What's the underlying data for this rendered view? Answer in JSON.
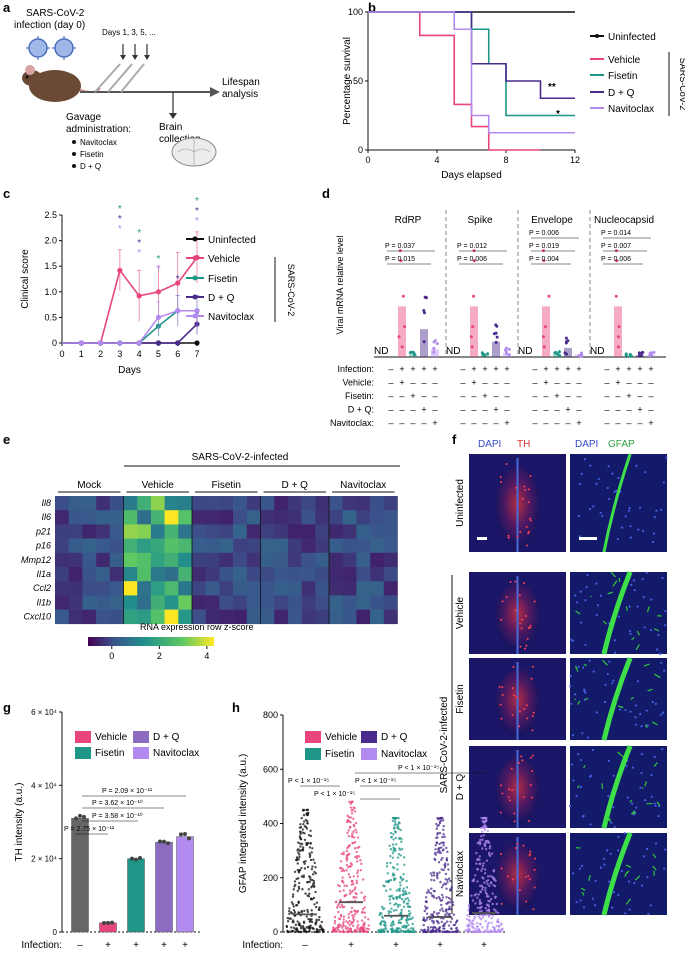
{
  "panels": {
    "a": {
      "label": "a",
      "infection_text": "SARS-CoV-2",
      "infection_day": "infection (day 0)",
      "days_text": "Days 1, 3, 5, ...",
      "lifespan1": "Lifespan",
      "lifespan2": "analysis",
      "gavage1": "Gavage",
      "gavage2": "administration:",
      "drugs": [
        "Navitoclax",
        "Fisetin",
        "D + Q"
      ],
      "brain1": "Brain",
      "brain2": "collection"
    },
    "b": {
      "label": "b"
    },
    "c": {
      "label": "c"
    },
    "d": {
      "label": "d"
    },
    "e": {
      "label": "e"
    },
    "f": {
      "label": "f"
    },
    "g": {
      "label": "g"
    },
    "h": {
      "label": "h"
    }
  },
  "colors": {
    "uninfected": "#111111",
    "vehicle": "#e8457c",
    "fisetin": "#1e9688",
    "dq": "#4a2a8c",
    "navitoclax": "#b38af0",
    "gray": "#666666"
  },
  "chart_data": [
    {
      "id": "b",
      "type": "line",
      "title": "",
      "xlabel": "Days elapsed",
      "ylabel": "Percentage survival",
      "xlim": [
        0,
        12
      ],
      "ylim": [
        0,
        100
      ],
      "xticks": [
        "0",
        "4",
        "8",
        "12"
      ],
      "yticks": [
        "0",
        "50",
        "100"
      ],
      "legend": [
        "Uninfected",
        "Vehicle",
        "Fisetin",
        "D + Q",
        "Navitoclax"
      ],
      "group_label": "SARS-CoV-2",
      "series": [
        {
          "name": "Uninfected",
          "steps": [
            [
              0,
              100
            ],
            [
              12,
              100
            ]
          ]
        },
        {
          "name": "Vehicle",
          "steps": [
            [
              0,
              100
            ],
            [
              3,
              100
            ],
            [
              3,
              83
            ],
            [
              5,
              83
            ],
            [
              5,
              33
            ],
            [
              6,
              33
            ],
            [
              6,
              17
            ],
            [
              7,
              17
            ],
            [
              7,
              0
            ],
            [
              10,
              0
            ]
          ]
        },
        {
          "name": "Fisetin",
          "steps": [
            [
              0,
              100
            ],
            [
              6,
              100
            ],
            [
              6,
              87.5
            ],
            [
              7,
              87.5
            ],
            [
              7,
              62.5
            ],
            [
              8,
              62.5
            ],
            [
              8,
              25
            ],
            [
              12,
              25
            ]
          ]
        },
        {
          "name": "D + Q",
          "steps": [
            [
              0,
              100
            ],
            [
              6,
              100
            ],
            [
              6,
              62.5
            ],
            [
              8,
              62.5
            ],
            [
              8,
              50
            ],
            [
              10,
              50
            ],
            [
              10,
              37.5
            ],
            [
              12,
              37.5
            ]
          ]
        },
        {
          "name": "Navitoclax",
          "steps": [
            [
              0,
              100
            ],
            [
              5,
              100
            ],
            [
              5,
              87.5
            ],
            [
              6,
              87.5
            ],
            [
              6,
              25
            ],
            [
              7,
              25
            ],
            [
              7,
              12.5
            ],
            [
              12,
              12.5
            ]
          ]
        }
      ],
      "annotations": [
        "**",
        "*"
      ]
    },
    {
      "id": "c",
      "type": "line",
      "xlabel": "Days",
      "ylabel": "Clinical score",
      "xlim": [
        0,
        7
      ],
      "ylim": [
        0,
        2.5
      ],
      "xticks": [
        "0",
        "1",
        "2",
        "3",
        "4",
        "5",
        "6",
        "7"
      ],
      "yticks": [
        "0",
        "0.5",
        "1.0",
        "1.5",
        "2.0",
        "2.5"
      ],
      "legend": [
        "Uninfected",
        "Vehicle",
        "Fisetin",
        "D + Q",
        "Navitoclax"
      ],
      "group_label": "SARS-CoV-2",
      "x": [
        1,
        2,
        3,
        4,
        5,
        6,
        7
      ],
      "series": [
        {
          "name": "Uninfected",
          "values": [
            0,
            0,
            0,
            0,
            0,
            0,
            0
          ]
        },
        {
          "name": "Vehicle",
          "values": [
            0,
            0,
            1.42,
            0.92,
            1.0,
            1.17,
            1.67
          ],
          "err": [
            0,
            0,
            0.4,
            0.5,
            0.5,
            0.6,
            0.5
          ]
        },
        {
          "name": "Fisetin",
          "values": [
            0,
            0,
            0,
            0,
            0.33,
            0.63,
            0.63
          ],
          "err": [
            0,
            0,
            0,
            0,
            0.2,
            0.3,
            0.3
          ]
        },
        {
          "name": "D + Q",
          "values": [
            0,
            0,
            0,
            0,
            0,
            0,
            0.37
          ],
          "err": [
            0,
            0,
            0,
            0,
            0,
            0,
            0.2
          ]
        },
        {
          "name": "Navitoclax",
          "values": [
            0,
            0,
            0,
            0,
            0.5,
            0.63,
            0.63
          ],
          "err": [
            0,
            0,
            0,
            0,
            0.3,
            0.3,
            0.3
          ]
        }
      ]
    },
    {
      "id": "d",
      "type": "bar",
      "ylabel": "Viral mRNA relative level",
      "genes": [
        "RdRP",
        "Spike",
        "Envelope",
        "Nucleocapsid"
      ],
      "nd": "ND",
      "means": [
        [
          0,
          1.0,
          0.05,
          0.55,
          0.15
        ],
        [
          0,
          1.0,
          0.04,
          0.3,
          0.08
        ],
        [
          0,
          1.0,
          0.05,
          0.18,
          0.05
        ],
        [
          0,
          1.0,
          0.03,
          0.04,
          0.04
        ]
      ],
      "pvals": [
        [
          "P = 0.037",
          "P = 0.015"
        ],
        [
          "P = 0.012",
          "P = 0.006"
        ],
        [
          "P = 0.006",
          "P = 0.019",
          "P = 0.004"
        ],
        [
          "P = 0.014",
          "P = 0.007",
          "P = 0.006"
        ]
      ],
      "rows": [
        "Infection:",
        "Vehicle:",
        "Fisetin:",
        "D + Q:",
        "Navitoclax:"
      ],
      "signs": [
        [
          "–",
          "+",
          "+",
          "+",
          "+"
        ],
        [
          "–",
          "+",
          "–",
          "–",
          "–"
        ],
        [
          "–",
          "–",
          "+",
          "–",
          "–"
        ],
        [
          "–",
          "–",
          "–",
          "+",
          "–"
        ],
        [
          "–",
          "–",
          "–",
          "–",
          "+"
        ]
      ]
    },
    {
      "id": "e",
      "type": "heatmap",
      "top_label": "SARS-CoV-2-infected",
      "groups": [
        "Mock",
        "Vehicle",
        "Fisetin",
        "D + Q",
        "Navitoclax"
      ],
      "genes": [
        "Il8",
        "Il6",
        "p21",
        "p16",
        "Mmp12",
        "Il1a",
        "Ccl2",
        "Il1b",
        "Cxcl10"
      ],
      "colorbar_label": "RNA expression row z-score",
      "colorbar_ticks": [
        "0",
        "2",
        "4"
      ],
      "zrange": [
        -1,
        4.3
      ]
    },
    {
      "id": "g",
      "type": "bar",
      "ylabel": "TH intensity (a.u.)",
      "yticks": [
        "0",
        "2 × 10⁴",
        "4 × 10⁴",
        "6 × 10⁴"
      ],
      "ylim": [
        0,
        60000
      ],
      "categories": [
        "Uninfected",
        "Vehicle",
        "Fisetin",
        "D + Q",
        "Navitoclax"
      ],
      "values": [
        31000,
        2500,
        20000,
        24500,
        26000
      ],
      "legend": [
        "Vehicle",
        "D + Q",
        "Fisetin",
        "Navitoclax"
      ],
      "pvals": [
        "P = 2.09 × 10⁻¹¹",
        "P = 3.62 × 10⁻¹⁰",
        "P = 3.58 × 10⁻¹⁰",
        "P = 2.75 × 10⁻¹²"
      ],
      "infection_label": "Infection:",
      "signs": [
        "–",
        "+",
        "+",
        "+",
        "+"
      ]
    },
    {
      "id": "h",
      "type": "scatter",
      "ylabel": "GFAP integrated intensity (a.u.)",
      "yticks": [
        "0",
        "200",
        "400",
        "600",
        "800"
      ],
      "ylim": [
        0,
        800
      ],
      "categories": [
        "Uninfected",
        "Vehicle",
        "Fisetin",
        "D + Q",
        "Navitoclax"
      ],
      "medians": [
        65,
        110,
        60,
        55,
        70
      ],
      "legend": [
        "Vehicle",
        "D + Q",
        "Fisetin",
        "Navitoclax"
      ],
      "pvals": [
        "P < 1 × 10⁻¹⁵",
        "P < 1 × 10⁻¹⁵",
        "P < 1 × 10⁻¹⁵",
        "P < 1 × 10⁻¹⁵"
      ],
      "infection_label": "Infection:",
      "signs": [
        "–",
        "+",
        "+",
        "+",
        "+"
      ]
    }
  ],
  "micrographs": {
    "col_labels": [
      [
        "DAPI",
        "TH"
      ],
      [
        "DAPI",
        "GFAP"
      ]
    ],
    "rows": [
      "Uninfected",
      "Vehicle",
      "Fisetin",
      "D + Q",
      "Navitoclax"
    ],
    "group_label": "SARS-CoV-2-infected"
  }
}
